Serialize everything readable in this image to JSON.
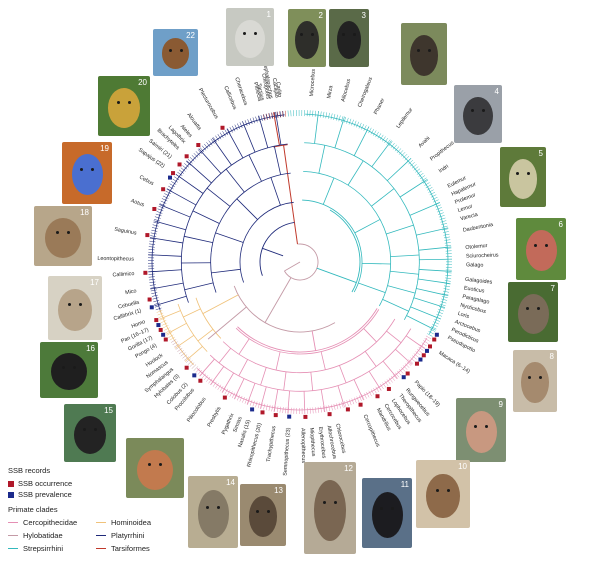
{
  "legend": {
    "ssb_title": "SSB records",
    "occurrence": "SSB occurrence",
    "prevalence": "SSB prevalence",
    "clade_title": "Primate clades",
    "clades": {
      "cercopithecidae": "Cercopithecidae",
      "hominoidea": "Hominoidea",
      "hylobatidae": "Hylobatidae",
      "platyrrhini": "Platyrrhini",
      "strepsirrhini": "Strepsirrhini",
      "tarsiformes": "Tarsiformes"
    }
  },
  "colors": {
    "cercopithecidae": "#e58fb4",
    "hominoidea": "#f0c27a",
    "hylobatidae": "#c49aa6",
    "platyrrhini": "#1f2a7a",
    "strepsirrhini": "#33b9bd",
    "tarsiformes": "#c0392b",
    "occurrence": "#b0182a",
    "prevalence": "#1b2a8c"
  },
  "tips": [
    {
      "label": "Carlito",
      "clade": "tarsiformes",
      "angle": -97
    },
    {
      "label": "Cephalopachus",
      "clade": "tarsiformes",
      "angle": -100
    },
    {
      "label": "Tarsius",
      "clade": "tarsiformes",
      "angle": -103
    },
    {
      "label": "Microcebus",
      "clade": "strepsirrhini",
      "angle": -86
    },
    {
      "label": "Mirza",
      "clade": "strepsirrhini",
      "angle": -80
    },
    {
      "label": "Allocebus",
      "clade": "strepsirrhini",
      "angle": -75
    },
    {
      "label": "Cheirogaleus",
      "clade": "strepsirrhini",
      "angle": -69
    },
    {
      "label": "Phaner",
      "clade": "strepsirrhini",
      "angle": -63
    },
    {
      "label": "Lepilemur",
      "clade": "strepsirrhini",
      "angle": -54
    },
    {
      "label": "Avahi",
      "clade": "strepsirrhini",
      "angle": -44
    },
    {
      "label": "Propithecus",
      "clade": "strepsirrhini",
      "angle": -38
    },
    {
      "label": "Indri",
      "clade": "strepsirrhini",
      "angle": -33
    },
    {
      "label": "Eulemur",
      "clade": "strepsirrhini",
      "angle": -27
    },
    {
      "label": "Hapalemur",
      "clade": "strepsirrhini",
      "angle": -24
    },
    {
      "label": "Prolemur",
      "clade": "strepsirrhini",
      "angle": -21
    },
    {
      "label": "Lemur",
      "clade": "strepsirrhini",
      "angle": -18
    },
    {
      "label": "Varecia",
      "clade": "strepsirrhini",
      "angle": -15
    },
    {
      "label": "Daubentonia",
      "clade": "strepsirrhini",
      "angle": -11
    },
    {
      "label": "Otolemur",
      "clade": "strepsirrhini",
      "angle": -5
    },
    {
      "label": "Sciurocheirus",
      "clade": "strepsirrhini",
      "angle": -2
    },
    {
      "label": "Galago",
      "clade": "strepsirrhini",
      "angle": 1
    },
    {
      "label": "Galagoides",
      "clade": "strepsirrhini",
      "angle": 6
    },
    {
      "label": "Euoticus",
      "clade": "strepsirrhini",
      "angle": 9
    },
    {
      "label": "Paragalago",
      "clade": "strepsirrhini",
      "angle": 12
    },
    {
      "label": "Nycticebus",
      "clade": "strepsirrhini",
      "angle": 15
    },
    {
      "label": "Loris",
      "clade": "strepsirrhini",
      "angle": 18
    },
    {
      "label": "Arctocebus",
      "clade": "strepsirrhini",
      "angle": 21
    },
    {
      "label": "Perodicticus",
      "clade": "strepsirrhini",
      "angle": 24
    },
    {
      "label": "Pseudopotto",
      "clade": "strepsirrhini",
      "angle": 27
    },
    {
      "label": "Macaca (6–14)",
      "clade": "cercopithecidae",
      "angle": 33
    },
    {
      "label": "Papio (18–19)",
      "clade": "cercopithecidae",
      "angle": 46
    },
    {
      "label": "Rungwecebus",
      "clade": "cercopithecidae",
      "angle": 50
    },
    {
      "label": "Theropithecus",
      "clade": "cercopithecidae",
      "angle": 53
    },
    {
      "label": "Lophocebus",
      "clade": "cercopithecidae",
      "angle": 56
    },
    {
      "label": "Cercocebus",
      "clade": "cercopithecidae",
      "angle": 59
    },
    {
      "label": "Mandrillus",
      "clade": "cercopithecidae",
      "angle": 62
    },
    {
      "label": "Cercopithecus",
      "clade": "cercopithecidae",
      "angle": 67
    },
    {
      "label": "Chlorocebus",
      "clade": "cercopithecidae",
      "angle": 77
    },
    {
      "label": "Allochrocebus",
      "clade": "cercopithecidae",
      "angle": 80
    },
    {
      "label": "Erythrocebus",
      "clade": "cercopithecidae",
      "angle": 83
    },
    {
      "label": "Miopithecus",
      "clade": "cercopithecidae",
      "angle": 86
    },
    {
      "label": "Allenopithecus",
      "clade": "cercopithecidae",
      "angle": 89
    },
    {
      "label": "Semnopithecus (23)",
      "clade": "cercopithecidae",
      "angle": 94
    },
    {
      "label": "Trachypithecus",
      "clade": "cercopithecidae",
      "angle": 99
    },
    {
      "label": "Rhinopithecus (20)",
      "clade": "cercopithecidae",
      "angle": 104
    },
    {
      "label": "Nasalis (15)",
      "clade": "cercopithecidae",
      "angle": 108
    },
    {
      "label": "Simias",
      "clade": "cercopithecidae",
      "angle": 111
    },
    {
      "label": "Pygathrix",
      "clade": "cercopithecidae",
      "angle": 114
    },
    {
      "label": "Presbytis",
      "clade": "cercopithecidae",
      "angle": 119
    },
    {
      "label": "Piliocolobus",
      "clade": "cercopithecidae",
      "angle": 125
    },
    {
      "label": "Procolobus",
      "clade": "cercopithecidae",
      "angle": 130
    },
    {
      "label": "Colobus (2)",
      "clade": "cercopithecidae",
      "angle": 133
    },
    {
      "label": "Hylobates (3)",
      "clade": "hylobatidae",
      "angle": 137
    },
    {
      "label": "Symphalangus",
      "clade": "hylobatidae",
      "angle": 140
    },
    {
      "label": "Nomascus",
      "clade": "hylobatidae",
      "angle": 143
    },
    {
      "label": "Hoolock",
      "clade": "hylobatidae",
      "angle": 146
    },
    {
      "label": "Pongo (4)",
      "clade": "hominoidea",
      "angle": 150
    },
    {
      "label": "Gorilla (17)",
      "clade": "hominoidea",
      "angle": 153
    },
    {
      "label": "Pan (16–17)",
      "clade": "hominoidea",
      "angle": 156
    },
    {
      "label": "Homo",
      "clade": "hominoidea",
      "angle": 159
    },
    {
      "label": "Callithrix (1)",
      "clade": "platyrrhini",
      "angle": 163
    },
    {
      "label": "Cebuella",
      "clade": "platyrrhini",
      "angle": 166
    },
    {
      "label": "Mico",
      "clade": "platyrrhini",
      "angle": 170
    },
    {
      "label": "Callimico",
      "clade": "platyrrhini",
      "angle": 176
    },
    {
      "label": "Leontopithecus",
      "clade": "platyrrhini",
      "angle": 181
    },
    {
      "label": "Saguinus",
      "clade": "platyrrhini",
      "angle": 190
    },
    {
      "label": "Aotus",
      "clade": "platyrrhini",
      "angle": 200
    },
    {
      "label": "Cebus",
      "clade": "platyrrhini",
      "angle": 208
    },
    {
      "label": "Sapajus (22)",
      "clade": "platyrrhini",
      "angle": 215
    },
    {
      "label": "Saimiri (21)",
      "clade": "platyrrhini",
      "angle": 219
    },
    {
      "label": "Brachyteles",
      "clade": "platyrrhini",
      "angle": 223
    },
    {
      "label": "Lagothrix",
      "clade": "platyrrhini",
      "angle": 226
    },
    {
      "label": "Ateles",
      "clade": "platyrrhini",
      "angle": 229
    },
    {
      "label": "Alouatta",
      "clade": "platyrrhini",
      "angle": 233
    },
    {
      "label": "Plecturocebus",
      "clade": "platyrrhini",
      "angle": 240
    },
    {
      "label": "Callicebus",
      "clade": "platyrrhini",
      "angle": 247
    },
    {
      "label": "Cheracebus",
      "clade": "platyrrhini",
      "angle": 251
    },
    {
      "label": "Pithecia",
      "clade": "platyrrhini",
      "angle": 256
    },
    {
      "label": "Chiropotes",
      "clade": "platyrrhini",
      "angle": 259
    },
    {
      "label": "Cacajao",
      "clade": "platyrrhini",
      "angle": 262
    }
  ],
  "photo_numbers": [
    "22",
    "1",
    "2",
    "3",
    "",
    "4",
    "5",
    "6",
    "7",
    "8",
    "9",
    "10",
    "11",
    "12",
    "13",
    "14",
    "",
    "15",
    "16",
    "17",
    "18",
    "19",
    "20",
    ""
  ],
  "photos": [
    {
      "number": "22",
      "fur": "#8a5a33",
      "bg": "#6f9fc8"
    },
    {
      "number": "1",
      "fur": "#d9d9d4",
      "bg": "#c7c9c2"
    },
    {
      "number": "2",
      "fur": "#2e2e2a",
      "bg": "#7f8f5a"
    },
    {
      "number": "3",
      "fur": "#222222",
      "bg": "#5a6a48"
    },
    {
      "number": "",
      "fur": "#3e362d",
      "bg": "#7c8a5c"
    },
    {
      "number": "4",
      "fur": "#3b3b3e",
      "bg": "#9aa0a8"
    },
    {
      "number": "5",
      "fur": "#c9c59f",
      "bg": "#5e7a3a"
    },
    {
      "number": "6",
      "fur": "#c26a5a",
      "bg": "#5f8a3d"
    },
    {
      "number": "7",
      "fur": "#7a6b58",
      "bg": "#496b32"
    },
    {
      "number": "8",
      "fur": "#a58a6e",
      "bg": "#c8bca8"
    },
    {
      "number": "9",
      "fur": "#c89880",
      "bg": "#7d8f72"
    },
    {
      "number": "10",
      "fur": "#8e6a4a",
      "bg": "#d2c2a8"
    },
    {
      "number": "11",
      "fur": "#1c1c20",
      "bg": "#5a7088"
    },
    {
      "number": "12",
      "fur": "#7a6652",
      "bg": "#b5aa96"
    },
    {
      "number": "13",
      "fur": "#5a4a3a",
      "bg": "#9a8a70"
    },
    {
      "number": "14",
      "fur": "#857a66",
      "bg": "#b8ad92"
    },
    {
      "number": "",
      "fur": "#c27a4e",
      "bg": "#7b8a5a"
    },
    {
      "number": "15",
      "fur": "#232323",
      "bg": "#4f7a52"
    },
    {
      "number": "16",
      "fur": "#1f1f1f",
      "bg": "#4d7a3a"
    },
    {
      "number": "17",
      "fur": "#b7a48a",
      "bg": "#d7d2c4"
    },
    {
      "number": "18",
      "fur": "#9a7a58",
      "bg": "#b7a68a"
    },
    {
      "number": "19",
      "fur": "#4a6fd0",
      "bg": "#c76a2a"
    },
    {
      "number": "20",
      "fur": "#c9a23a",
      "bg": "#4e7a34"
    },
    {
      "number": "",
      "fur": "#2a2a22",
      "bg": "#3c5a2a"
    }
  ]
}
